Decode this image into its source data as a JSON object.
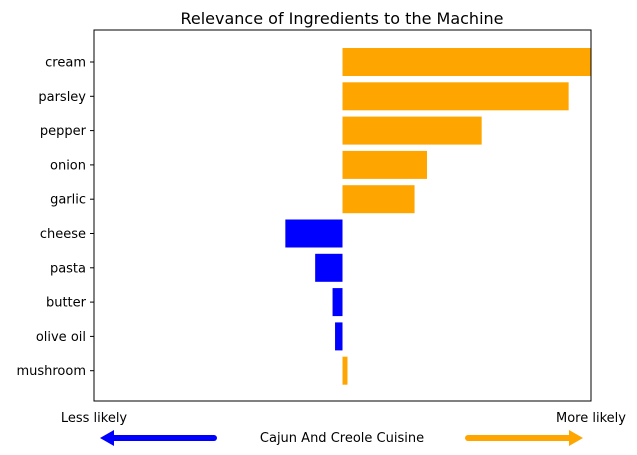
{
  "chart_data": {
    "type": "bar",
    "orientation": "horizontal",
    "title": "Relevance of Ingredients to the Machine",
    "categories": [
      "cream",
      "parsley",
      "pepper",
      "onion",
      "garlic",
      "cheese",
      "pasta",
      "butter",
      "olive oil",
      "mushroom"
    ],
    "values": [
      1.0,
      0.91,
      0.56,
      0.34,
      0.29,
      -0.23,
      -0.11,
      -0.04,
      -0.03,
      0.02
    ],
    "xlim": [
      -1.0,
      1.0
    ],
    "grid": false,
    "x_end_labels": {
      "left": "Less likely",
      "right": "More likely"
    },
    "xlabel": "Cajun And Creole Cuisine",
    "colors": {
      "positive": "#ffa500",
      "negative": "#0000ff"
    }
  }
}
